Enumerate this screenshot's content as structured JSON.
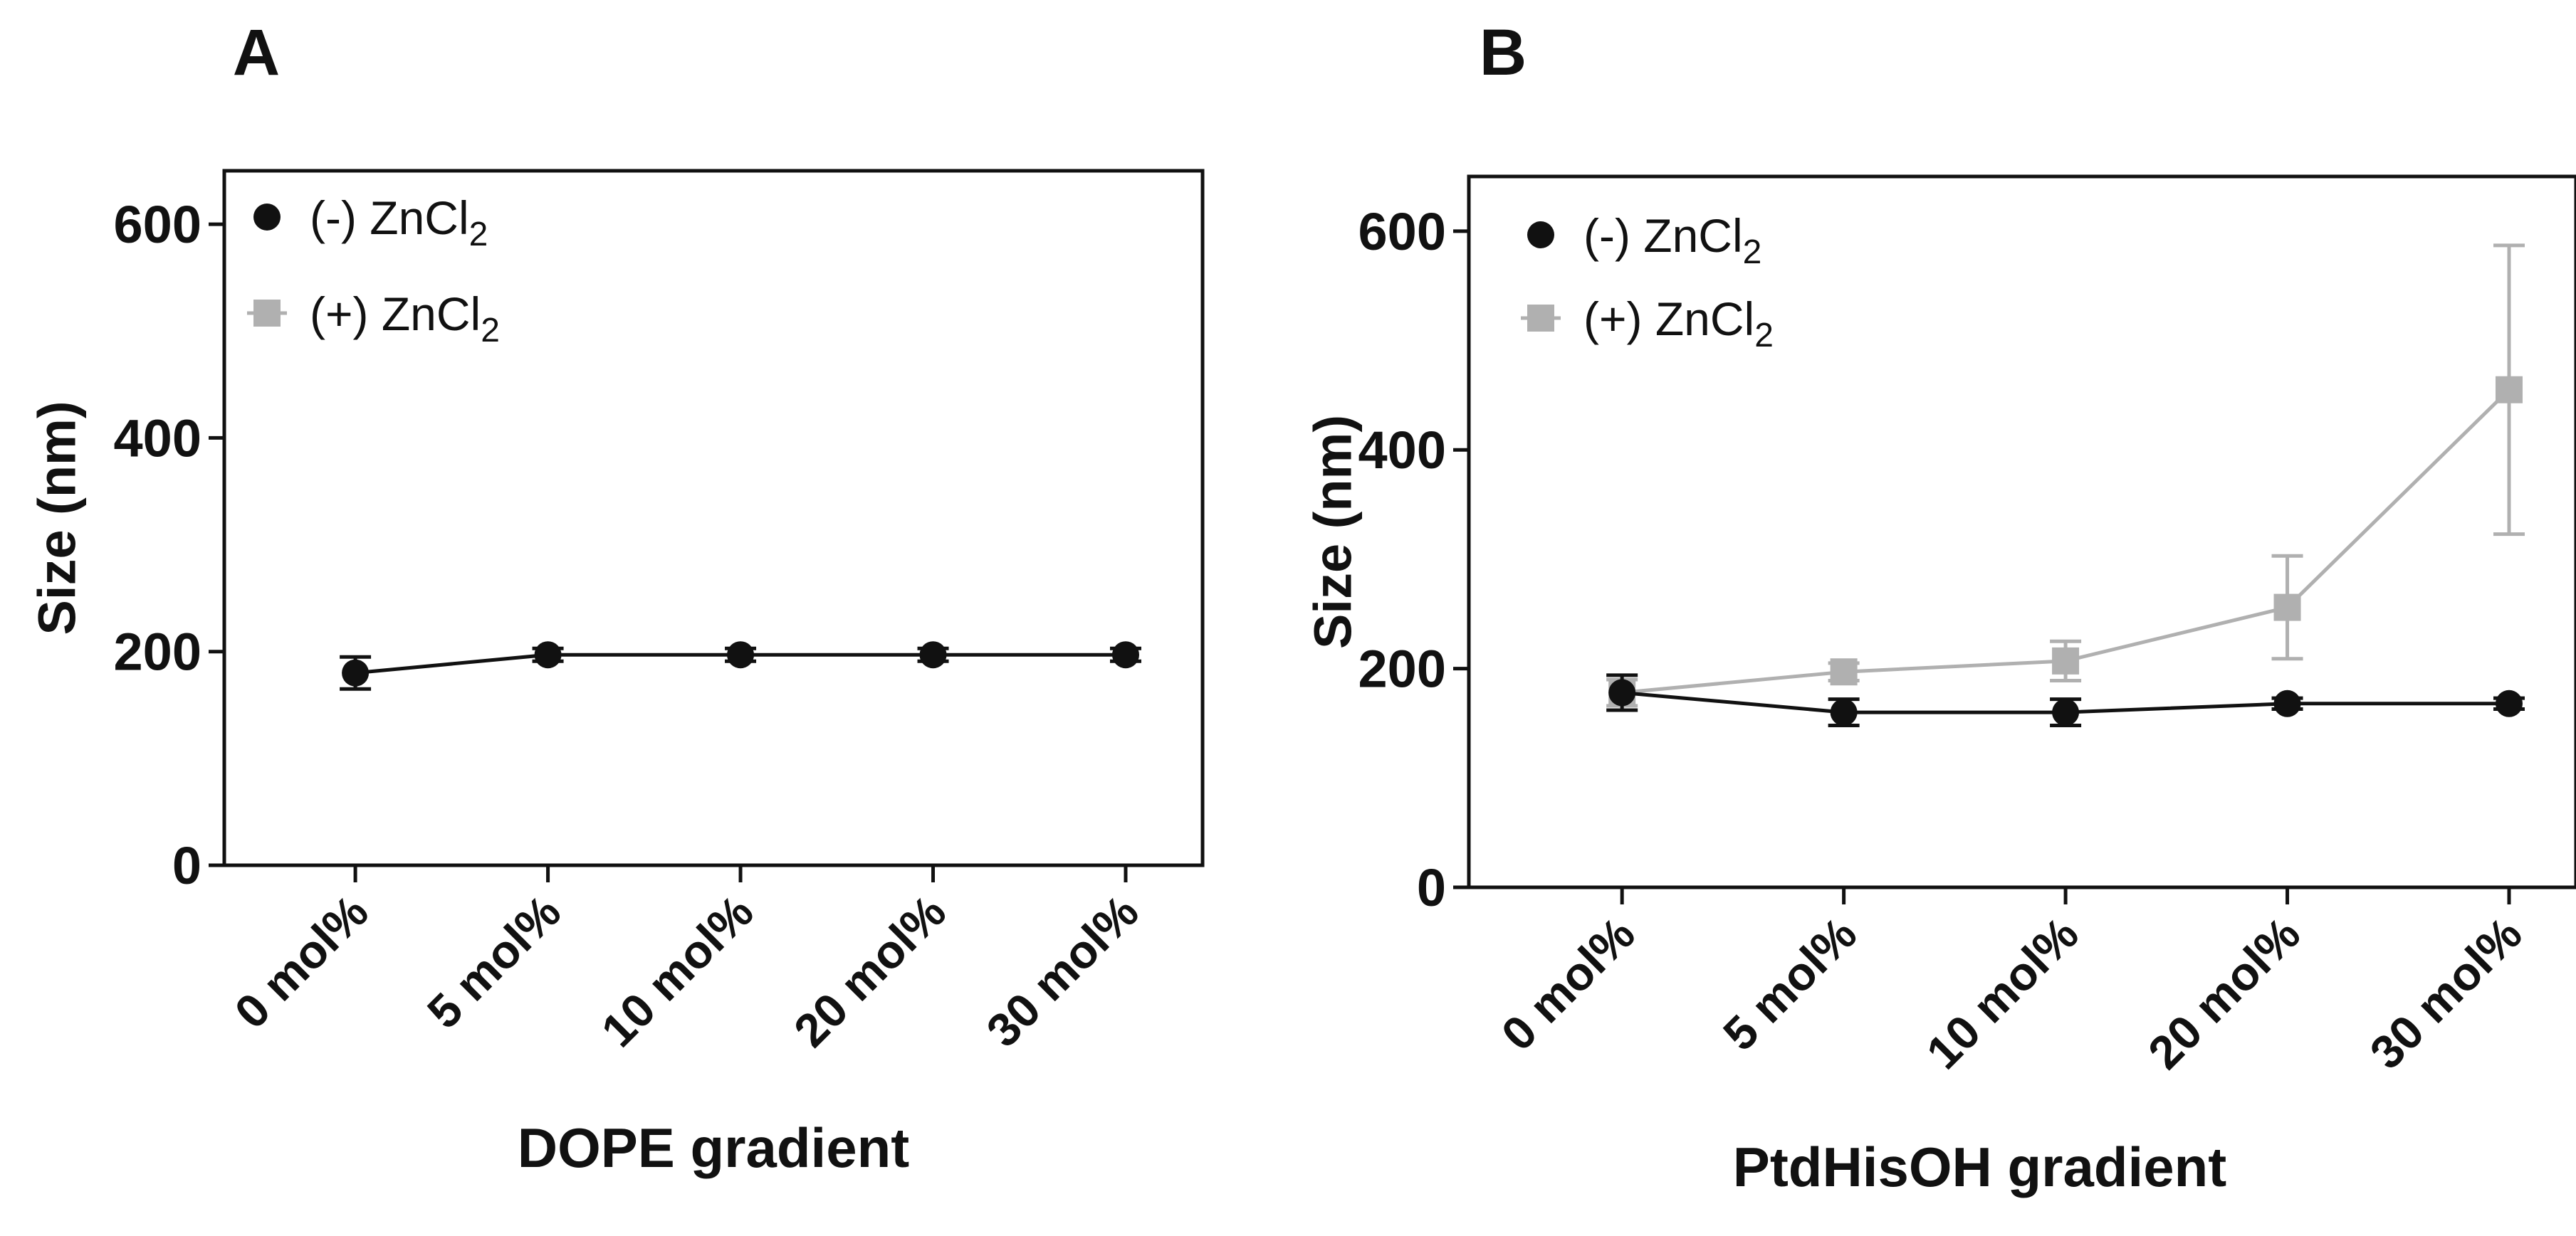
{
  "chart_data": [
    {
      "type": "line",
      "panel_label": "A",
      "title": "",
      "xlabel": "DOPE gradient",
      "ylabel": "Size (nm)",
      "ylim": [
        0,
        650
      ],
      "yticks": [
        "0",
        "200",
        "400",
        "600"
      ],
      "categories": [
        "0 mol%",
        "5 mol%",
        "10 mol%",
        "20 mol%",
        "30 mol%"
      ],
      "legend_position": "top-left",
      "legend": [
        {
          "label": "(-) ZnCl",
          "sub": "2",
          "marker": "circle",
          "color": "#111111"
        },
        {
          "label": "(+) ZnCl",
          "sub": "2",
          "marker": "square",
          "color": "#b0b0b0"
        }
      ],
      "series": [
        {
          "name": "(-) ZnCl2",
          "marker": "circle",
          "color": "#111111",
          "values": [
            180,
            197,
            197,
            197,
            197
          ],
          "errors": [
            15,
            6,
            6,
            6,
            6
          ]
        }
      ]
    },
    {
      "type": "line",
      "panel_label": "B",
      "title": "",
      "xlabel": "PtdHisOH gradient",
      "ylabel": "Size (nm)",
      "ylim": [
        0,
        650
      ],
      "yticks": [
        "0",
        "200",
        "400",
        "600"
      ],
      "categories": [
        "0 mol%",
        "5 mol%",
        "10 mol%",
        "20 mol%",
        "30 mol%"
      ],
      "legend_position": "top-left",
      "legend": [
        {
          "label": "(-) ZnCl",
          "sub": "2",
          "marker": "circle",
          "color": "#111111"
        },
        {
          "label": "(+) ZnCl",
          "sub": "2",
          "marker": "square",
          "color": "#b0b0b0"
        }
      ],
      "series": [
        {
          "name": "(+) ZnCl2",
          "marker": "square",
          "color": "#b0b0b0",
          "values": [
            178,
            197,
            207,
            256,
            455
          ],
          "errors": [
            12,
            8,
            18,
            47,
            132
          ]
        },
        {
          "name": "(-) ZnCl2",
          "marker": "circle",
          "color": "#111111",
          "values": [
            178,
            160,
            160,
            168,
            168
          ],
          "errors": [
            16,
            12,
            12,
            5,
            5
          ]
        }
      ]
    }
  ]
}
